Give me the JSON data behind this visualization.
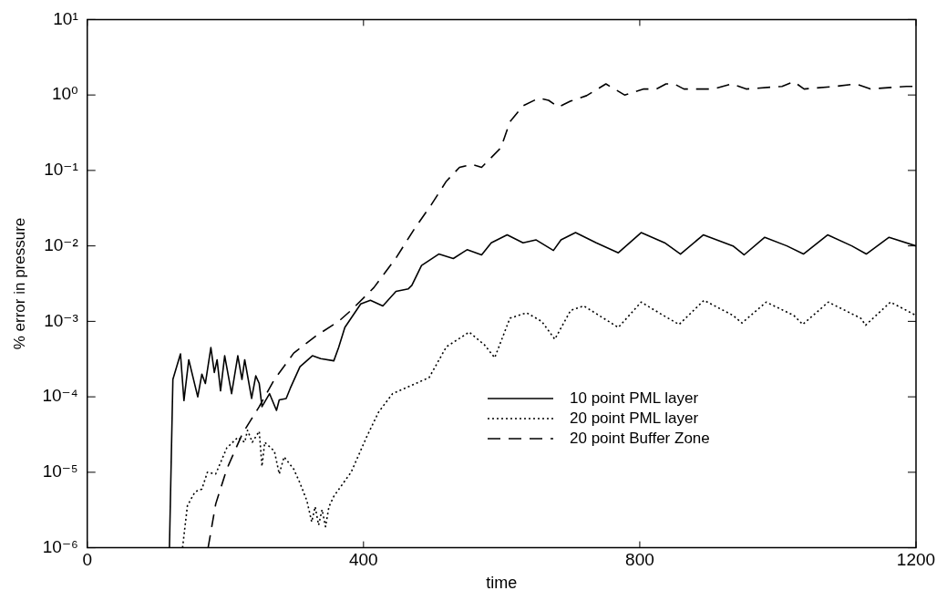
{
  "chart_data": {
    "type": "line",
    "xlabel": "time",
    "ylabel": "% error in pressure",
    "log": "y",
    "grid": false,
    "legend": "center right",
    "marker": "none",
    "xlim": [
      0,
      1200
    ],
    "xticks": [
      0,
      400,
      800,
      1200
    ],
    "ylim": [
      1e-06,
      10
    ],
    "yticks": [
      {
        "value": 1e-06,
        "label": "10⁻⁶"
      },
      {
        "value": 1e-05,
        "label": "10⁻⁵"
      },
      {
        "value": 0.0001,
        "label": "10⁻⁴"
      },
      {
        "value": 0.001,
        "label": "10⁻³"
      },
      {
        "value": 0.01,
        "label": "10⁻²"
      },
      {
        "value": 0.1,
        "label": "10⁻¹"
      },
      {
        "value": 1,
        "label": "10⁰"
      },
      {
        "value": 10,
        "label": "10¹"
      }
    ],
    "series": [
      {
        "name": "10 point PML layer",
        "color": "#000000",
        "line_style": "solid",
        "x": [
          119,
          124,
          135,
          140,
          147,
          160,
          166,
          171,
          179,
          184,
          188,
          193,
          199,
          209,
          218,
          224,
          228,
          238,
          244,
          249,
          253,
          264,
          274,
          278,
          288,
          294,
          308,
          326,
          338,
          357,
          364,
          373,
          396,
          410,
          428,
          447,
          465,
          470,
          484,
          509,
          530,
          550,
          571,
          585,
          608,
          631,
          650,
          675,
          686,
          707,
          737,
          769,
          802,
          836,
          859,
          892,
          935,
          951,
          981,
          1013,
          1037,
          1072,
          1107,
          1128,
          1161,
          1200
        ],
        "values": [
          1e-06,
          0.00017,
          0.00037,
          8.9e-05,
          0.00031,
          0.0001,
          0.0002,
          0.00015,
          0.00045,
          0.00021,
          0.00031,
          0.00012,
          0.00035,
          0.00011,
          0.00035,
          0.00017,
          0.00031,
          9.5e-05,
          0.00019,
          0.00015,
          7.4e-05,
          0.00011,
          6.6e-05,
          9.1e-05,
          9.5e-05,
          0.00013,
          0.00025,
          0.00035,
          0.00032,
          0.0003,
          0.00045,
          0.00083,
          0.0017,
          0.0019,
          0.0016,
          0.0025,
          0.0027,
          0.003,
          0.0055,
          0.0078,
          0.0068,
          0.0089,
          0.0076,
          0.011,
          0.014,
          0.011,
          0.012,
          0.0087,
          0.012,
          0.015,
          0.011,
          0.0081,
          0.015,
          0.011,
          0.0078,
          0.014,
          0.01,
          0.0076,
          0.013,
          0.01,
          0.0078,
          0.014,
          0.01,
          0.0078,
          0.013,
          0.01
        ]
      },
      {
        "name": "20 point PML layer",
        "color": "#000000",
        "line_style": "dotted",
        "x": [
          138,
          145,
          156,
          166,
          174,
          186,
          202,
          218,
          228,
          232,
          239,
          249,
          253,
          257,
          271,
          278,
          285,
          299,
          308,
          318,
          325,
          330,
          335,
          340,
          345,
          350,
          357,
          382,
          405,
          422,
          442,
          460,
          495,
          520,
          553,
          575,
          590,
          612,
          636,
          658,
          677,
          700,
          719,
          741,
          769,
          802,
          834,
          857,
          893,
          935,
          948,
          983,
          1023,
          1036,
          1073,
          1120,
          1127,
          1163,
          1200
        ],
        "values": [
          1e-06,
          3.6e-06,
          5.5e-06,
          6e-06,
          1e-05,
          9.5e-06,
          2.1e-05,
          2.9e-05,
          2.5e-05,
          3.6e-05,
          2.5e-05,
          3.5e-05,
          1.2e-05,
          2.5e-05,
          1.9e-05,
          9.5e-06,
          1.6e-05,
          1.1e-05,
          7.2e-06,
          4.2e-06,
          2.2e-06,
          3.5e-06,
          2e-06,
          3.2e-06,
          1.9e-06,
          3.5e-06,
          4.8e-06,
          1e-05,
          3e-05,
          6.3e-05,
          0.00011,
          0.00013,
          0.00018,
          0.00046,
          0.00072,
          0.00049,
          0.00033,
          0.0011,
          0.0013,
          0.001,
          0.00058,
          0.0014,
          0.0016,
          0.0012,
          0.00083,
          0.0018,
          0.0012,
          0.00091,
          0.0019,
          0.0012,
          0.00095,
          0.0018,
          0.0012,
          0.00091,
          0.0018,
          0.0011,
          0.00089,
          0.0018,
          0.0012
        ]
      },
      {
        "name": "20 point Buffer Zone",
        "color": "#000000",
        "line_style": "dashed",
        "x": [
          175,
          186,
          202,
          225,
          249,
          271,
          299,
          332,
          364,
          382,
          415,
          447,
          474,
          498,
          520,
          539,
          557,
          571,
          599,
          612,
          631,
          654,
          668,
          682,
          700,
          723,
          751,
          778,
          806,
          824,
          838,
          850,
          864,
          907,
          933,
          954,
          1006,
          1023,
          1038,
          1083,
          1113,
          1134,
          1186,
          1200
        ],
        "values": [
          1e-06,
          3.8e-06,
          1.1e-05,
          3.3e-05,
          7.4e-05,
          0.00017,
          0.00038,
          0.00065,
          0.001,
          0.0014,
          0.0028,
          0.0069,
          0.017,
          0.035,
          0.072,
          0.11,
          0.12,
          0.11,
          0.2,
          0.44,
          0.72,
          0.91,
          0.85,
          0.69,
          0.83,
          0.98,
          1.4,
          1.0,
          1.2,
          1.2,
          1.4,
          1.4,
          1.2,
          1.2,
          1.4,
          1.2,
          1.3,
          1.5,
          1.2,
          1.3,
          1.4,
          1.2,
          1.3,
          1.3
        ]
      }
    ]
  }
}
